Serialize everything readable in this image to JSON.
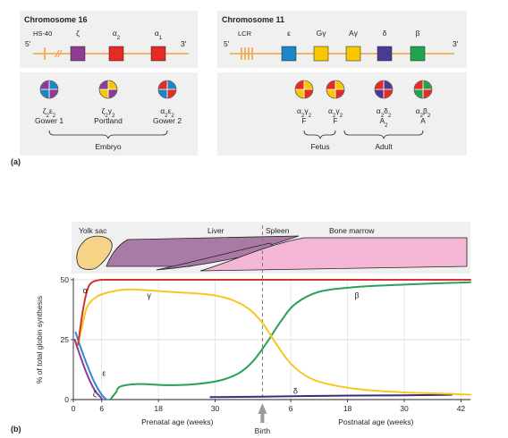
{
  "panel_a": {
    "label": "(a)",
    "chromosome16": {
      "title": "Chromosome 16",
      "five_prime": "5'",
      "three_prime": "3'",
      "regulator": "HS-40",
      "genes": [
        {
          "name": "ζ",
          "color": "#8e3b94"
        },
        {
          "name": "α2",
          "color": "#e42b24"
        },
        {
          "name": "α1",
          "color": "#e42b24"
        }
      ],
      "hemoglobins": [
        {
          "formula": "ζ2ε2",
          "name": "Gower 1",
          "quadrants": [
            "#8e3b94",
            "#1a86c8",
            "#1a86c8",
            "#8e3b94"
          ]
        },
        {
          "formula": "ζ2γ2",
          "name": "Portland",
          "quadrants": [
            "#8e3b94",
            "#f7c700",
            "#f7c700",
            "#8e3b94"
          ]
        },
        {
          "formula": "α2ε2",
          "name": "Gower 2",
          "quadrants": [
            "#e42b24",
            "#1a86c8",
            "#1a86c8",
            "#e42b24"
          ]
        }
      ],
      "group_label": "Embryo"
    },
    "chromosome11": {
      "title": "Chromosome 11",
      "five_prime": "5'",
      "three_prime": "3'",
      "regulator": "LCR",
      "genes": [
        {
          "name": "ε",
          "color": "#1a86c8"
        },
        {
          "name": "Gγ",
          "color": "#f7c700"
        },
        {
          "name": "Aγ",
          "color": "#f7c700"
        },
        {
          "name": "δ",
          "color": "#4b3a8f"
        },
        {
          "name": "β",
          "color": "#20a34c"
        }
      ],
      "hemoglobins": [
        {
          "formula": "α2γ2",
          "name": "F",
          "quadrants": [
            "#e42b24",
            "#f7c700",
            "#f7c700",
            "#e42b24"
          ]
        },
        {
          "formula": "α2γ2",
          "name": "F",
          "quadrants": [
            "#e42b24",
            "#f7c700",
            "#f7c700",
            "#e42b24"
          ]
        },
        {
          "formula": "α2δ2",
          "name": "A2",
          "quadrants": [
            "#e42b24",
            "#4b3a8f",
            "#4b3a8f",
            "#e42b24"
          ]
        },
        {
          "formula": "α2β2",
          "name": "A",
          "quadrants": [
            "#e42b24",
            "#20a34c",
            "#20a34c",
            "#e42b24"
          ]
        }
      ],
      "group_labels": [
        "Fetus",
        "Adult"
      ]
    }
  },
  "panel_b": {
    "label": "(b)",
    "sites": [
      "Yolk sac",
      "Liver",
      "Spleen",
      "Bone marrow"
    ],
    "site_colors": {
      "yolk": "#f5d487",
      "liver": "#a97aa6",
      "marrow": "#f3b6d5"
    },
    "birth_label": "Birth",
    "chart_data": {
      "type": "line",
      "ylabel": "% of total globin synthesis",
      "yticks": [
        0,
        25,
        50
      ],
      "ylim": [
        0,
        50
      ],
      "prenatal_xlabel": "Prenatal age (weeks)",
      "postnatal_xlabel": "Postnatal age (weeks)",
      "prenatal_ticks": [
        "0",
        "6",
        "18",
        "30"
      ],
      "postnatal_ticks": [
        "6",
        "18",
        "30",
        "42"
      ],
      "axis_ticks": [
        {
          "label": "0",
          "t": 0
        },
        {
          "label": "6",
          "t": 6
        },
        {
          "label": "18",
          "t": 18
        },
        {
          "label": "30",
          "t": 30
        },
        {
          "label": "6",
          "t": 46
        },
        {
          "label": "18",
          "t": 58
        },
        {
          "label": "30",
          "t": 70
        },
        {
          "label": "42",
          "t": 82
        }
      ],
      "birth_t": 40,
      "xlim": [
        0,
        84
      ],
      "series": [
        {
          "name": "α",
          "color": "#d9312b",
          "points": [
            [
              1,
              23
            ],
            [
              2,
              37
            ],
            [
              3,
              46
            ],
            [
              4,
              49
            ],
            [
              6,
              50
            ],
            [
              10,
              50
            ],
            [
              40,
              50
            ],
            [
              84,
              50
            ]
          ]
        },
        {
          "name": "γ",
          "color": "#f6c81f",
          "points": [
            [
              1,
              23
            ],
            [
              2,
              32
            ],
            [
              3,
              39
            ],
            [
              5,
              43
            ],
            [
              8,
              45
            ],
            [
              12,
              46
            ],
            [
              20,
              45
            ],
            [
              28,
              44
            ],
            [
              33,
              42
            ],
            [
              37,
              38
            ],
            [
              40,
              32
            ],
            [
              43,
              23
            ],
            [
              46,
              15
            ],
            [
              50,
              9
            ],
            [
              55,
              6
            ],
            [
              62,
              4
            ],
            [
              70,
              3
            ],
            [
              78,
              2.5
            ],
            [
              84,
              2
            ]
          ]
        },
        {
          "name": "β",
          "color": "#2aa05a",
          "points": [
            [
              8,
              0.5
            ],
            [
              9,
              3
            ],
            [
              10,
              5.5
            ],
            [
              14,
              6.5
            ],
            [
              20,
              6
            ],
            [
              26,
              6.5
            ],
            [
              31,
              8
            ],
            [
              35,
              11
            ],
            [
              38,
              16
            ],
            [
              41,
              24
            ],
            [
              44,
              33
            ],
            [
              47,
              40
            ],
            [
              52,
              45
            ],
            [
              60,
              47
            ],
            [
              70,
              48
            ],
            [
              84,
              49
            ]
          ]
        },
        {
          "name": "ε",
          "color": "#2a8ad0",
          "points": [
            [
              0.5,
              28
            ],
            [
              1.5,
              22
            ],
            [
              3,
              14
            ],
            [
              4.5,
              7
            ],
            [
              6,
              2
            ],
            [
              7,
              0
            ]
          ]
        },
        {
          "name": "ζ",
          "color": "#8e3b94",
          "points": [
            [
              0.3,
              25
            ],
            [
              1.5,
              18
            ],
            [
              3,
              10
            ],
            [
              4.5,
              4
            ],
            [
              6,
              0.5
            ]
          ]
        },
        {
          "name": "δ",
          "color": "#3d2e7a",
          "points": [
            [
              29,
              1
            ],
            [
              40,
              1.2
            ],
            [
              55,
              1.6
            ],
            [
              70,
              1.8
            ],
            [
              80,
              2
            ]
          ]
        }
      ],
      "series_labels": [
        {
          "name": "α",
          "t": 2.5,
          "v": 45.5
        },
        {
          "name": "γ",
          "t": 16,
          "v": 43.5
        },
        {
          "name": "β",
          "t": 60,
          "v": 43.5
        },
        {
          "name": "ε",
          "t": 6.5,
          "v": 11
        },
        {
          "name": "ζ",
          "t": 4.5,
          "v": 2.5
        },
        {
          "name": "δ",
          "t": 47,
          "v": 3.5
        }
      ]
    }
  }
}
